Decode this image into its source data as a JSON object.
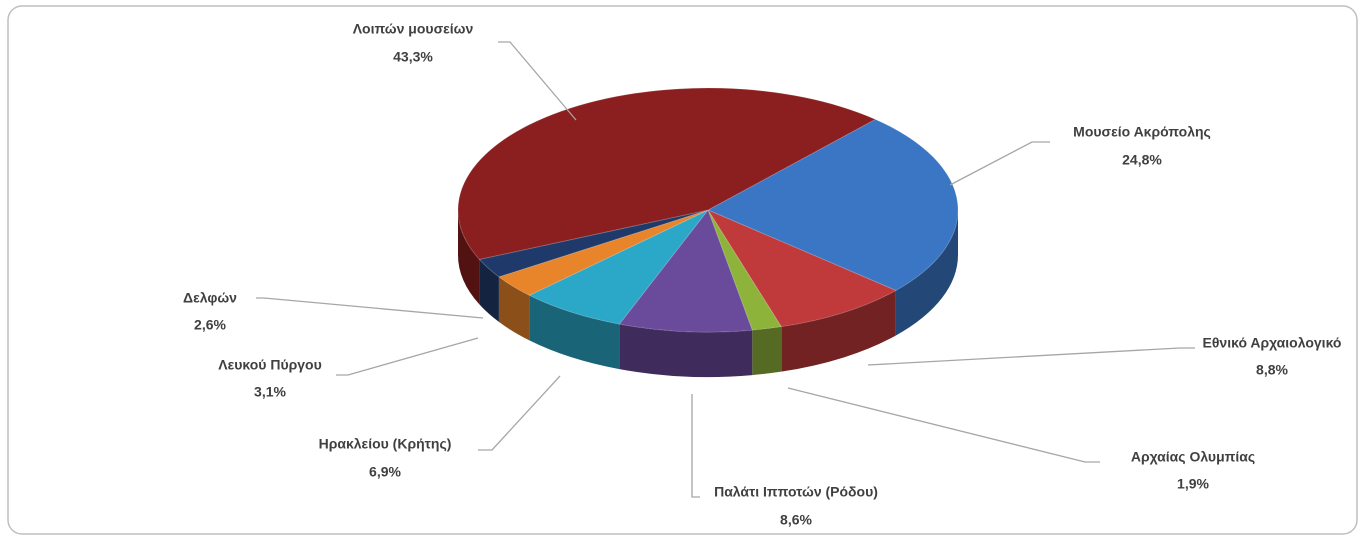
{
  "chart_data": {
    "type": "pie",
    "categories": [
      "Μουσείο Ακρόπολης",
      "Εθνικό Αρχαιολογικό",
      "Αρχαίας Ολυμπίας",
      "Παλάτι Ιπποτών (Ρόδου)",
      "Ηρακλείου (Κρήτης)",
      "Λευκού Πύργου",
      "Δελφών",
      "Λοιπών μουσείων"
    ],
    "values": [
      24.8,
      8.8,
      1.9,
      8.6,
      6.9,
      3.1,
      2.6,
      43.3
    ],
    "value_labels": [
      "24,8%",
      "8,8%",
      "1,9%",
      "8,6%",
      "6,9%",
      "3,1%",
      "2,6%",
      "43,3%"
    ],
    "colors": [
      "#3a76c4",
      "#c0393b",
      "#8db33a",
      "#6a4a9a",
      "#2ba7c8",
      "#e8842a",
      "#1f3a6a",
      "#8b1e1e"
    ]
  }
}
